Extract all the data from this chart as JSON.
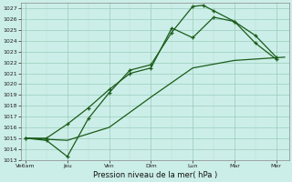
{
  "background_color": "#cceee8",
  "grid_color_major": "#aaddcc",
  "grid_color_minor": "#bbeeee",
  "line_color": "#1a5c1a",
  "xlabel": "Pression niveau de la mer( hPa )",
  "ylim": [
    1013,
    1027.5
  ],
  "yticks": [
    1013,
    1014,
    1015,
    1016,
    1017,
    1018,
    1019,
    1020,
    1021,
    1022,
    1023,
    1024,
    1025,
    1026,
    1027
  ],
  "x_labels": [
    "Ve6am",
    "Jeu",
    "Ven",
    "Dim",
    "Lun",
    "Mar",
    "Mer"
  ],
  "x_positions": [
    0,
    1,
    2,
    3,
    4,
    5,
    6
  ],
  "xlim": [
    -0.1,
    6.3
  ],
  "line1_x": [
    0.0,
    0.5,
    1.0,
    1.5,
    2.0,
    2.5,
    3.0,
    3.5,
    4.0,
    4.25,
    4.5,
    5.0,
    5.5,
    6.0
  ],
  "line1_y": [
    1015.0,
    1014.8,
    1013.3,
    1016.8,
    1019.2,
    1021.3,
    1021.8,
    1024.8,
    1027.2,
    1027.3,
    1026.8,
    1025.8,
    1023.8,
    1022.3
  ],
  "line2_x": [
    0.0,
    0.5,
    1.0,
    1.5,
    2.0,
    2.5,
    3.0,
    3.5,
    4.0,
    4.5,
    5.0,
    5.5,
    6.0
  ],
  "line2_y": [
    1015.0,
    1015.0,
    1016.3,
    1017.8,
    1019.5,
    1021.0,
    1021.5,
    1025.2,
    1024.3,
    1026.2,
    1025.8,
    1024.5,
    1022.5
  ],
  "line3_x": [
    0.0,
    1.0,
    2.0,
    3.0,
    4.0,
    5.0,
    6.2
  ],
  "line3_y": [
    1015.0,
    1014.8,
    1016.0,
    1018.8,
    1021.5,
    1022.2,
    1022.5
  ]
}
